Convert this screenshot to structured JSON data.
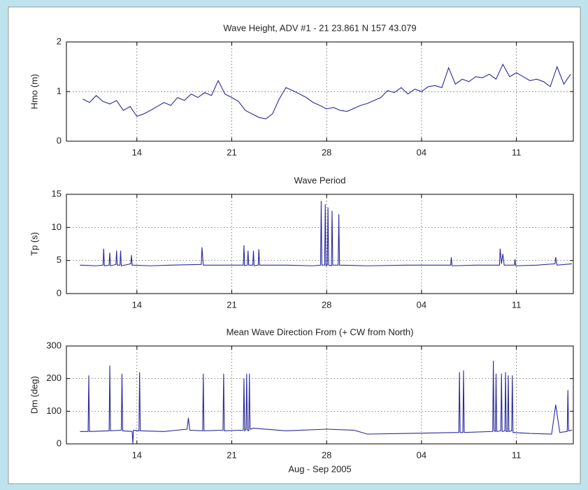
{
  "chart_data": [
    {
      "type": "line",
      "title": "Wave Height, ADV #1 - 21 23.861 N   157 43.079",
      "ylabel": "Hmo (m)",
      "color": "#2a2a9c",
      "grid": true,
      "xlim": [
        8.8,
        46.2
      ],
      "ylim": [
        0,
        2
      ],
      "yticks": [
        0,
        1,
        2
      ],
      "xticks": [
        14,
        21,
        28,
        {
          "value": 35,
          "label": "04"
        },
        {
          "value": 42,
          "label": "11"
        }
      ],
      "x": [
        10,
        10.5,
        11,
        11.5,
        12,
        12.5,
        13,
        13.5,
        14,
        14.5,
        15,
        15.5,
        16,
        16.5,
        17,
        17.5,
        18,
        18.5,
        19,
        19.5,
        20,
        20.5,
        21,
        21.5,
        22,
        22.5,
        23,
        23.5,
        24,
        24.5,
        25,
        25.5,
        26,
        26.5,
        27,
        27.5,
        28,
        28.5,
        29,
        29.5,
        30,
        30.5,
        31,
        31.5,
        32,
        32.5,
        33,
        33.5,
        34,
        34.5,
        35,
        35.5,
        36,
        36.5,
        37,
        37.5,
        38,
        38.5,
        39,
        39.5,
        40,
        40.5,
        41,
        41.5,
        42,
        42.5,
        43,
        43.5,
        44,
        44.5,
        45,
        45.5,
        46
      ],
      "values": [
        0.85,
        0.78,
        0.92,
        0.8,
        0.75,
        0.82,
        0.62,
        0.7,
        0.5,
        0.55,
        0.62,
        0.7,
        0.78,
        0.72,
        0.88,
        0.82,
        0.95,
        0.88,
        0.98,
        0.92,
        1.22,
        0.95,
        0.88,
        0.8,
        0.62,
        0.55,
        0.48,
        0.45,
        0.55,
        0.85,
        1.08,
        1.02,
        0.95,
        0.88,
        0.78,
        0.72,
        0.65,
        0.68,
        0.62,
        0.6,
        0.66,
        0.72,
        0.76,
        0.82,
        0.88,
        1.02,
        0.98,
        1.08,
        0.95,
        1.05,
        1.0,
        1.1,
        1.12,
        1.08,
        1.48,
        1.15,
        1.25,
        1.2,
        1.3,
        1.28,
        1.35,
        1.25,
        1.55,
        1.3,
        1.38,
        1.3,
        1.22,
        1.25,
        1.2,
        1.1,
        1.5,
        1.15,
        1.35
      ]
    },
    {
      "type": "line",
      "title": "Wave Period",
      "ylabel": "Tp (s)",
      "color": "#2a2a9c",
      "grid": true,
      "xlim": [
        8.8,
        46.2
      ],
      "ylim": [
        0,
        15
      ],
      "yticks": [
        0,
        5,
        10,
        15
      ],
      "xticks": [
        14,
        21,
        28,
        {
          "value": 35,
          "label": "04"
        },
        {
          "value": 42,
          "label": "11"
        }
      ],
      "x": [
        9.8,
        11.0,
        11.5,
        11.55,
        11.6,
        11.95,
        12.0,
        12.05,
        12.45,
        12.5,
        12.55,
        12.75,
        12.8,
        12.85,
        13.55,
        13.6,
        13.65,
        15.0,
        16.5,
        18.75,
        18.8,
        18.9,
        20.0,
        21.85,
        21.9,
        21.95,
        22.15,
        22.2,
        22.25,
        22.55,
        22.6,
        22.65,
        22.95,
        23.0,
        23.05,
        25.0,
        27.0,
        27.55,
        27.6,
        27.65,
        27.85,
        27.9,
        27.95,
        28.05,
        28.1,
        28.15,
        28.35,
        28.4,
        28.45,
        28.85,
        28.9,
        28.95,
        31.0,
        34.0,
        37.15,
        37.2,
        37.25,
        39.0,
        40.75,
        40.8,
        40.9,
        41.0,
        41.1,
        41.85,
        41.9,
        41.95,
        43.5,
        44.85,
        44.9,
        45.0,
        46.1
      ],
      "values": [
        4.3,
        4.2,
        4.3,
        6.8,
        4.2,
        4.3,
        6.2,
        4.2,
        4.4,
        6.5,
        4.3,
        4.3,
        6.5,
        4.2,
        4.5,
        5.8,
        4.3,
        4.2,
        4.3,
        4.4,
        7.0,
        4.3,
        4.3,
        4.3,
        7.3,
        4.2,
        4.3,
        6.5,
        4.3,
        4.3,
        6.5,
        4.2,
        4.3,
        6.7,
        4.3,
        4.3,
        4.2,
        4.3,
        14.0,
        4.3,
        4.3,
        13.5,
        4.2,
        4.3,
        13.0,
        4.3,
        4.2,
        12.5,
        4.3,
        4.3,
        12.0,
        4.3,
        4.2,
        4.3,
        4.3,
        5.5,
        4.2,
        4.3,
        4.3,
        6.8,
        4.5,
        6.0,
        4.3,
        4.3,
        5.2,
        4.2,
        4.3,
        4.5,
        5.5,
        4.3,
        4.5
      ]
    },
    {
      "type": "line",
      "title": "Mean Wave Direction From (+ CW from North)",
      "ylabel": "Dm (deg)",
      "xlabel": "Aug - Sep 2005",
      "color": "#2a2a9c",
      "grid": true,
      "xlim": [
        8.8,
        46.2
      ],
      "ylim": [
        0,
        300
      ],
      "yticks": [
        0,
        100,
        200,
        300
      ],
      "xticks": [
        14,
        21,
        28,
        {
          "value": 35,
          "label": "04"
        },
        {
          "value": 42,
          "label": "11"
        }
      ],
      "x": [
        9.8,
        10.4,
        10.45,
        10.5,
        11.95,
        12.0,
        12.05,
        12.85,
        12.9,
        12.95,
        13.65,
        13.7,
        13.75,
        14.15,
        14.2,
        14.25,
        16.0,
        17.7,
        17.8,
        17.9,
        18.85,
        18.9,
        18.95,
        20.35,
        20.4,
        20.45,
        21.85,
        21.9,
        21.95,
        22.05,
        22.1,
        22.15,
        22.25,
        22.3,
        22.35,
        22.6,
        25.0,
        28.0,
        30.0,
        31.0,
        34.0,
        37.75,
        37.8,
        37.85,
        38.05,
        38.1,
        38.15,
        40.25,
        40.3,
        40.35,
        40.45,
        40.5,
        40.55,
        40.85,
        40.9,
        40.95,
        41.15,
        41.2,
        41.25,
        41.35,
        41.4,
        41.45,
        41.65,
        41.7,
        41.75,
        43.0,
        44.6,
        44.9,
        45.2,
        45.75,
        45.8,
        45.85,
        46.1
      ],
      "values": [
        38,
        38,
        210,
        38,
        40,
        240,
        40,
        42,
        215,
        40,
        38,
        0,
        42,
        40,
        220,
        40,
        38,
        45,
        80,
        42,
        40,
        215,
        40,
        42,
        215,
        40,
        42,
        200,
        40,
        45,
        215,
        42,
        40,
        215,
        45,
        48,
        40,
        45,
        42,
        30,
        32,
        35,
        220,
        35,
        35,
        225,
        35,
        38,
        255,
        40,
        38,
        215,
        38,
        40,
        215,
        38,
        40,
        220,
        38,
        38,
        210,
        38,
        40,
        210,
        35,
        32,
        30,
        120,
        35,
        38,
        165,
        40,
        42
      ]
    }
  ]
}
